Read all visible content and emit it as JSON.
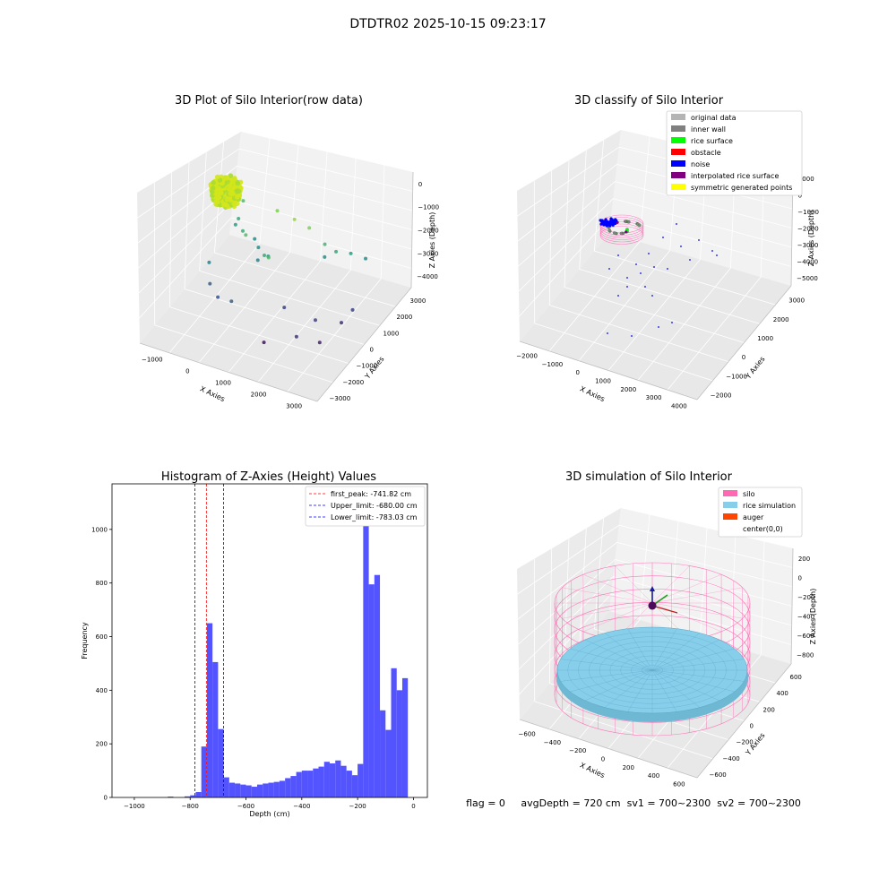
{
  "figure": {
    "suptitle": "DTDTR02 2025-10-15 09:23:17",
    "status_line": "flag = 0     avgDepth = 720 cm  sv1 = 700~2300  sv2 = 700~2300"
  },
  "chart_data": [
    {
      "type": "scatter",
      "projection": "3d",
      "title": "3D Plot of Silo Interior(row data)",
      "xlabel": "X Axies",
      "ylabel": "Y Axies",
      "zlabel": "Z Axies (Depth)",
      "x_ticks": [
        "−1000",
        "0",
        "1000",
        "2000",
        "3000"
      ],
      "y_ticks": [
        "−3000",
        "−2000",
        "−1000",
        "0",
        "1000",
        "2000",
        "3000"
      ],
      "z_ticks": [
        "0",
        "−1000",
        "−2000",
        "−3000",
        "−4000"
      ],
      "xlim": [
        -1500,
        3500
      ],
      "ylim": [
        -3000,
        3500
      ],
      "zlim": [
        -4500,
        0
      ],
      "grid": true,
      "colormap": "viridis",
      "cluster": {
        "x_range": [
          -600,
          200
        ],
        "y_range": [
          -600,
          400
        ],
        "z_range": [
          -1200,
          -700
        ],
        "color": "#d4e51a"
      },
      "points": [
        {
          "x": 0,
          "y": 300,
          "z": -1900,
          "c": 0.6
        },
        {
          "x": -200,
          "y": 600,
          "z": -2300,
          "c": 0.55
        },
        {
          "x": 200,
          "y": 100,
          "z": -2100,
          "c": 0.62
        },
        {
          "x": 400,
          "y": -200,
          "z": -2000,
          "c": 0.7
        },
        {
          "x": 600,
          "y": 200,
          "z": -2500,
          "c": 0.5
        },
        {
          "x": 800,
          "y": 400,
          "z": -2800,
          "c": 0.45
        },
        {
          "x": 1000,
          "y": -400,
          "z": -2300,
          "c": 0.6
        },
        {
          "x": 1200,
          "y": -600,
          "z": -2200,
          "c": 0.7
        },
        {
          "x": 1500,
          "y": 500,
          "z": -1500,
          "c": 0.85
        },
        {
          "x": 1800,
          "y": 800,
          "z": -1800,
          "c": 0.8
        },
        {
          "x": 2400,
          "y": 1200,
          "z": -2500,
          "c": 0.6
        },
        {
          "x": 2700,
          "y": 1500,
          "z": -2600,
          "c": 0.55
        },
        {
          "x": 3000,
          "y": 1800,
          "z": -2800,
          "c": 0.5
        },
        {
          "x": 2000,
          "y": 1400,
          "z": -2900,
          "c": 0.5
        },
        {
          "x": 2200,
          "y": 900,
          "z": -2200,
          "c": 0.65
        },
        {
          "x": -400,
          "y": -800,
          "z": -2800,
          "c": 0.45
        },
        {
          "x": -300,
          "y": -1000,
          "z": -3300,
          "c": 0.3
        },
        {
          "x": 0,
          "y": -1200,
          "z": -3500,
          "c": 0.25
        },
        {
          "x": 500,
          "y": -1500,
          "z": -3300,
          "c": 0.3
        },
        {
          "x": 1600,
          "y": -500,
          "z": -3600,
          "c": 0.2
        },
        {
          "x": 2100,
          "y": -900,
          "z": -4100,
          "c": 0.15
        },
        {
          "x": 2600,
          "y": -500,
          "z": -4300,
          "c": 0.1
        },
        {
          "x": 1300,
          "y": -1200,
          "z": -4400,
          "c": 0.05
        },
        {
          "x": 2400,
          "y": -300,
          "z": -3800,
          "c": 0.2
        },
        {
          "x": 2900,
          "y": 300,
          "z": -4000,
          "c": 0.15
        },
        {
          "x": 3100,
          "y": 600,
          "z": -3700,
          "c": 0.2
        },
        {
          "x": -100,
          "y": 900,
          "z": -1700,
          "c": 0.7
        },
        {
          "x": 300,
          "y": 700,
          "z": -2600,
          "c": 0.5
        },
        {
          "x": 700,
          "y": -100,
          "z": -2700,
          "c": 0.45
        },
        {
          "x": 900,
          "y": 800,
          "z": -1600,
          "c": 0.8
        }
      ]
    },
    {
      "type": "scatter",
      "projection": "3d",
      "title": "3D classify of Silo Interior",
      "xlabel": "X Axies",
      "ylabel": "Y Axies",
      "zlabel": "Z Axies (Depth)",
      "x_ticks": [
        "−2000",
        "−1000",
        "0",
        "1000",
        "2000",
        "3000",
        "4000"
      ],
      "y_ticks": [
        "−2000",
        "−1000",
        "0",
        "1000",
        "2000",
        "3000"
      ],
      "z_ticks": [
        "1000",
        "0",
        "−1000",
        "−2000",
        "−3000",
        "−4000",
        "−5000"
      ],
      "xlim": [
        -2500,
        4500
      ],
      "ylim": [
        -2500,
        3500
      ],
      "zlim": [
        -5000,
        1000
      ],
      "grid": true,
      "legend_position": "top-right",
      "legend": [
        {
          "label": "original data",
          "color": "#b4b4b4"
        },
        {
          "label": "inner wall",
          "color": "#808080"
        },
        {
          "label": "rice surface",
          "color": "#00ff00"
        },
        {
          "label": "obstacle",
          "color": "#ff0000"
        },
        {
          "label": "noise",
          "color": "#0000ff"
        },
        {
          "label": "interpolated rice surface",
          "color": "#800080"
        },
        {
          "label": "symmetric generated points",
          "color": "#ffff00"
        }
      ]
    },
    {
      "type": "bar",
      "subtype": "histogram",
      "title": "Histogram of Z-Axies (Height) Values",
      "xlabel": "Depth (cm)",
      "ylabel": "Frequency",
      "xlim": [
        -1080,
        50
      ],
      "ylim": [
        0,
        1170
      ],
      "x_ticks": [
        -1000,
        -800,
        -600,
        -400,
        -200,
        0
      ],
      "x_tick_labels": [
        "−1000",
        "−800",
        "−600",
        "−400",
        "−200",
        "0"
      ],
      "y_ticks": [
        0,
        200,
        400,
        600,
        800,
        1000
      ],
      "y_tick_labels": [
        "0",
        "200",
        "400",
        "600",
        "800",
        "1000"
      ],
      "bar_color": "#4b4bff",
      "legend_position": "top-right",
      "bins": [
        [
          -880,
          -860,
          3
        ],
        [
          -820,
          -800,
          4
        ],
        [
          -800,
          -780,
          8
        ],
        [
          -780,
          -760,
          20
        ],
        [
          -760,
          -740,
          190
        ],
        [
          -740,
          -720,
          650
        ],
        [
          -720,
          -700,
          505
        ],
        [
          -700,
          -680,
          255
        ],
        [
          -680,
          -660,
          75
        ],
        [
          -660,
          -640,
          55
        ],
        [
          -640,
          -620,
          52
        ],
        [
          -620,
          -600,
          48
        ],
        [
          -600,
          -580,
          45
        ],
        [
          -580,
          -560,
          40
        ],
        [
          -560,
          -540,
          48
        ],
        [
          -540,
          -520,
          52
        ],
        [
          -520,
          -500,
          55
        ],
        [
          -500,
          -480,
          58
        ],
        [
          -480,
          -460,
          62
        ],
        [
          -460,
          -440,
          72
        ],
        [
          -440,
          -420,
          80
        ],
        [
          -420,
          -400,
          95
        ],
        [
          -400,
          -380,
          100
        ],
        [
          -380,
          -360,
          100
        ],
        [
          -360,
          -340,
          108
        ],
        [
          -340,
          -320,
          115
        ],
        [
          -320,
          -300,
          133
        ],
        [
          -300,
          -280,
          127
        ],
        [
          -280,
          -260,
          138
        ],
        [
          -260,
          -240,
          118
        ],
        [
          -240,
          -220,
          100
        ],
        [
          -220,
          -200,
          83
        ],
        [
          -200,
          -180,
          125
        ],
        [
          -180,
          -160,
          1110
        ],
        [
          -160,
          -140,
          795
        ],
        [
          -140,
          -120,
          830
        ],
        [
          -120,
          -100,
          325
        ],
        [
          -100,
          -80,
          252
        ],
        [
          -80,
          -60,
          482
        ],
        [
          -60,
          -40,
          400
        ],
        [
          -40,
          -20,
          445
        ]
      ],
      "vlines": [
        {
          "label": "first_peak: -741.82 cm",
          "x": -741.82,
          "color": "#ff0000"
        },
        {
          "label": "Upper_limit: -680.00 cm",
          "x": -680.0,
          "color": "#0000ff"
        },
        {
          "label": "Lower_limit: -783.03 cm",
          "x": -783.03,
          "color": "#0000ff"
        }
      ]
    },
    {
      "type": "scatter",
      "projection": "3d",
      "title": "3D simulation of Silo Interior",
      "xlabel": "X Axies",
      "ylabel": "Y Axies",
      "zlabel": "Z Axies (Depth)",
      "x_ticks": [
        "−600",
        "−400",
        "−200",
        "0",
        "200",
        "400",
        "600"
      ],
      "y_ticks": [
        "−600",
        "−400",
        "−200",
        "0",
        "200",
        "400",
        "600"
      ],
      "z_ticks": [
        "200",
        "0",
        "−200",
        "−400",
        "−600",
        "−800"
      ],
      "xlim": [
        -650,
        650
      ],
      "ylim": [
        -650,
        650
      ],
      "zlim": [
        -1000,
        300
      ],
      "grid": true,
      "legend_position": "top-right",
      "legend": [
        {
          "label": "silo",
          "color": "#ff69b4"
        },
        {
          "label": "rice simulation",
          "color": "#87ceeb"
        },
        {
          "label": "auger",
          "color": "#ff4500"
        },
        {
          "label": "center(0,0)",
          "color": "#ffffff"
        }
      ]
    }
  ]
}
